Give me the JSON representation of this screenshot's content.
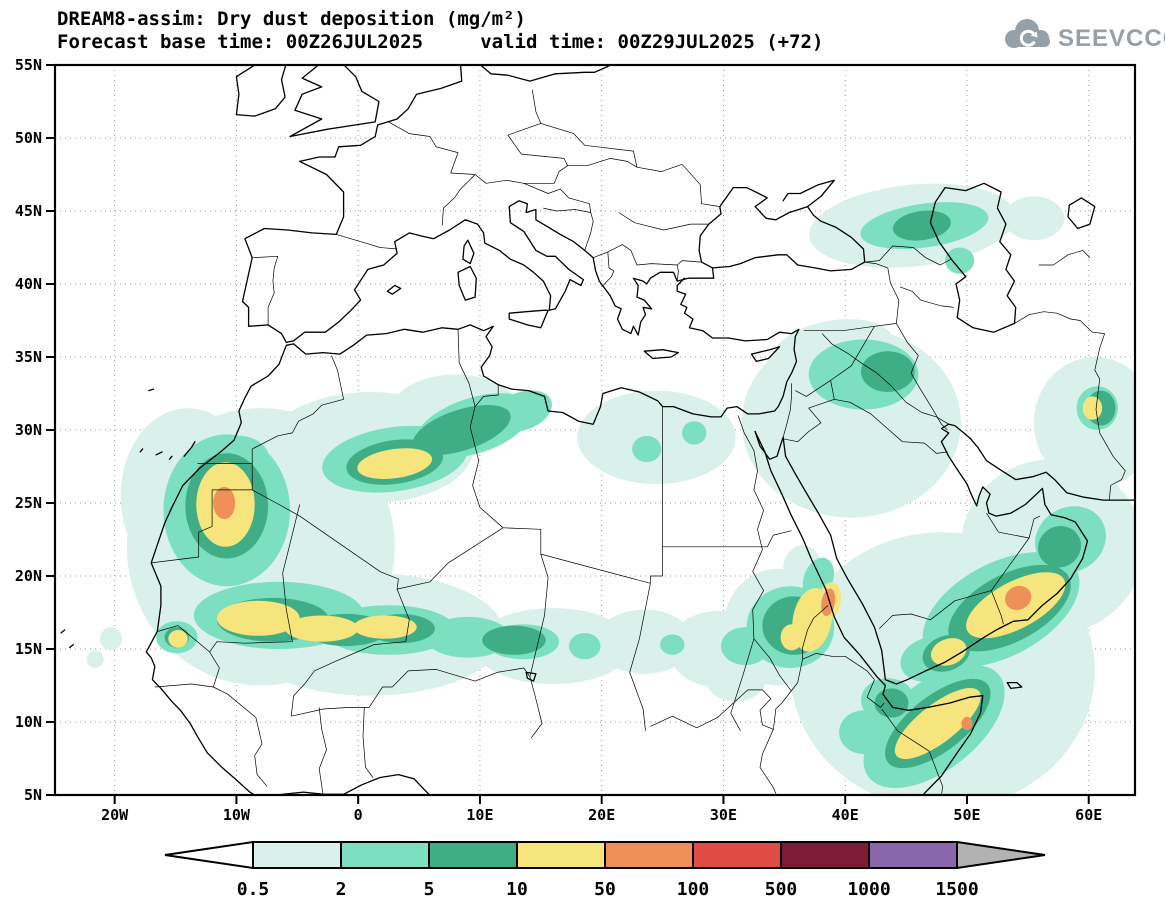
{
  "header": {
    "title": "DREAM8-assim: Dry dust deposition (mg/m²)",
    "subtitle": "Forecast base time: 00Z26JUL2025     valid time: 00Z29JUL2025 (+72)"
  },
  "logo": {
    "text": "SEEVCCC"
  },
  "map": {
    "lat_ticks": [
      "55N",
      "50N",
      "45N",
      "40N",
      "35N",
      "30N",
      "25N",
      "20N",
      "15N",
      "10N",
      "5N"
    ],
    "lon_ticks": [
      "20W",
      "10W",
      "0",
      "10E",
      "20E",
      "30E",
      "40E",
      "50E",
      "60E"
    ]
  },
  "chart_data": {
    "type": "heatmap",
    "title": "DREAM8-assim: Dry dust deposition (mg/m²)",
    "model": "DREAM8-assim",
    "variable": "Dry dust deposition",
    "units": "mg/m²",
    "forecast_base_time": "00Z26JUL2025",
    "valid_time": "00Z29JUL2025 (+72)",
    "lead_hours": 72,
    "extent": {
      "lon_min": -24.9,
      "lon_max": 63.8,
      "lat_min": 5,
      "lat_max": 55
    },
    "grid": "dotted, 5 deg lat / 10 deg lon",
    "legend_position": "bottom",
    "colorbar": {
      "levels": [
        0.5,
        2,
        5,
        10,
        50,
        100,
        500,
        1000,
        1500
      ],
      "labels": [
        "0.5",
        "2",
        "5",
        "10",
        "50",
        "100",
        "500",
        "1000",
        "1500"
      ],
      "colors": [
        "#ffffff",
        "#d9f1ea",
        "#7cdfbf",
        "#3fae86",
        "#f6e47c",
        "#ee9058",
        "#e04b43",
        "#7e1c38",
        "#8a67aa",
        "#b2b2b2"
      ]
    },
    "feature_columns": [
      "level_mg_m2",
      "lon_deg",
      "lat_deg",
      "rx_deg",
      "ry_deg",
      "rotation_deg"
    ],
    "deposition_features": [
      [
        0.5,
        -8,
        22,
        11,
        9.5,
        0
      ],
      [
        0.5,
        -14,
        25.5,
        5.5,
        6,
        0
      ],
      [
        0.5,
        1,
        28.8,
        8.5,
        3.8,
        0
      ],
      [
        0.5,
        8,
        31,
        5.5,
        2.8,
        0
      ],
      [
        0.5,
        1,
        16,
        11,
        4.2,
        0
      ],
      [
        0.5,
        16,
        15.2,
        6.5,
        2.6,
        0
      ],
      [
        0.5,
        23.5,
        15.5,
        4,
        2.2,
        0
      ],
      [
        0.5,
        29.5,
        15,
        4,
        2.6,
        0
      ],
      [
        0.5,
        34.5,
        16.5,
        4.5,
        4,
        0
      ],
      [
        0.5,
        24.5,
        29.5,
        6.5,
        3.2,
        0
      ],
      [
        0.5,
        40.5,
        30.5,
        9,
        6.5,
        0
      ],
      [
        0.5,
        39,
        35.5,
        5,
        2,
        -10
      ],
      [
        0.5,
        45.5,
        44,
        8.5,
        2.8,
        -6
      ],
      [
        0.5,
        48,
        13.5,
        12.5,
        9.5,
        0
      ],
      [
        0.5,
        57,
        22,
        7.5,
        6,
        0
      ],
      [
        0.5,
        60.5,
        30.5,
        5,
        4.5,
        0
      ],
      [
        0.5,
        -20.3,
        15.7,
        0.9,
        0.8,
        0
      ],
      [
        0.5,
        -21.6,
        14.3,
        0.7,
        0.6,
        0
      ],
      [
        0.5,
        31,
        13,
        2.5,
        1.6,
        0
      ],
      [
        0.5,
        55.5,
        44.5,
        2.5,
        1.5,
        0
      ],
      [
        0.5,
        36.5,
        20.5,
        1.6,
        1.6,
        0
      ],
      [
        2,
        -10.8,
        24.5,
        5.2,
        5.2,
        0
      ],
      [
        2,
        -9.8,
        28,
        2.5,
        1.6,
        0
      ],
      [
        2,
        -6.5,
        17.3,
        7,
        2.3,
        0
      ],
      [
        2,
        2.5,
        16.3,
        5.5,
        1.7,
        0
      ],
      [
        2,
        9,
        15.8,
        3.5,
        1.4,
        0
      ],
      [
        2,
        13.5,
        15.5,
        3,
        1.2,
        0
      ],
      [
        2,
        3,
        28,
        6,
        2.2,
        -8
      ],
      [
        2,
        9.5,
        30.3,
        5,
        1.9,
        -18
      ],
      [
        2,
        13.5,
        31.3,
        2.5,
        1.3,
        -20
      ],
      [
        2,
        -14.9,
        15.8,
        1.7,
        1.1,
        0
      ],
      [
        2,
        35.5,
        16.5,
        3.6,
        2.8,
        0
      ],
      [
        2,
        31.8,
        15.2,
        2,
        1.3,
        0
      ],
      [
        2,
        37.8,
        19.8,
        1.2,
        1.5,
        20
      ],
      [
        2,
        47.3,
        9.7,
        6.8,
        3,
        -38
      ],
      [
        2,
        43.5,
        11.5,
        2.2,
        1.5,
        0
      ],
      [
        2,
        41.5,
        9.3,
        2,
        1.5,
        0
      ],
      [
        2,
        52.8,
        17.7,
        7,
        3.2,
        -28
      ],
      [
        2,
        47,
        14.3,
        2.5,
        1.5,
        -15
      ],
      [
        2,
        58.5,
        22.5,
        3,
        2.2,
        -30
      ],
      [
        2,
        41.5,
        33.8,
        4.5,
        2.4,
        0
      ],
      [
        2,
        46.5,
        44,
        5.3,
        1.5,
        -8
      ],
      [
        2,
        23.7,
        28.7,
        1.2,
        0.9,
        0
      ],
      [
        2,
        27.6,
        29.8,
        1,
        0.8,
        0
      ],
      [
        2,
        60.7,
        31.5,
        1.7,
        1.5,
        0
      ],
      [
        2,
        25.8,
        15.3,
        1,
        0.7,
        0
      ],
      [
        2,
        18.6,
        15.2,
        1.3,
        0.9,
        0
      ],
      [
        2,
        49.4,
        41.6,
        1.2,
        0.9,
        0
      ],
      [
        5,
        -10.8,
        24.8,
        3.4,
        3.6,
        0
      ],
      [
        5,
        -7,
        17,
        4.6,
        1.5,
        0
      ],
      [
        5,
        -1,
        16.3,
        3.4,
        1.1,
        0
      ],
      [
        5,
        3.5,
        16.4,
        2.8,
        1,
        0
      ],
      [
        5,
        3,
        27.8,
        4,
        1.5,
        -8
      ],
      [
        5,
        8.5,
        30,
        4.2,
        1.4,
        -18
      ],
      [
        5,
        12.8,
        15.6,
        2.6,
        1,
        0
      ],
      [
        5,
        35.8,
        16.6,
        2.6,
        2,
        0
      ],
      [
        5,
        47.6,
        9.9,
        5.2,
        1.9,
        -38
      ],
      [
        5,
        43.8,
        11.3,
        1.4,
        1,
        0
      ],
      [
        5,
        53.5,
        17.8,
        5.5,
        2.3,
        -28
      ],
      [
        5,
        48.3,
        14.7,
        2,
        1.2,
        -20
      ],
      [
        5,
        43.5,
        34,
        2.2,
        1.4,
        0
      ],
      [
        5,
        46.3,
        44,
        2.4,
        1,
        -8
      ],
      [
        5,
        -14.9,
        15.8,
        1,
        0.7,
        0
      ],
      [
        5,
        57.6,
        22,
        1.8,
        1.4,
        -30
      ],
      [
        5,
        61,
        31.5,
        1.2,
        1.2,
        0
      ],
      [
        10,
        -10.9,
        24.9,
        2.4,
        2.9,
        0
      ],
      [
        10,
        -8.2,
        17.1,
        3.4,
        1.2,
        0
      ],
      [
        10,
        -3,
        16.4,
        3,
        0.9,
        0
      ],
      [
        10,
        2.2,
        16.5,
        2.6,
        0.8,
        0
      ],
      [
        10,
        -14.8,
        15.7,
        0.8,
        0.6,
        0
      ],
      [
        10,
        3,
        27.7,
        3.1,
        1,
        -8
      ],
      [
        10,
        37.3,
        17,
        1.6,
        2.2,
        10
      ],
      [
        10,
        35.6,
        15.8,
        0.9,
        0.9,
        0
      ],
      [
        10,
        47.6,
        9.9,
        4.3,
        1.3,
        -38
      ],
      [
        10,
        54,
        18,
        4.5,
        1.6,
        -28
      ],
      [
        10,
        48.5,
        14.8,
        1.5,
        0.9,
        -20
      ],
      [
        10,
        60.3,
        31.5,
        0.8,
        0.8,
        0
      ],
      [
        10,
        38.6,
        18.2,
        1,
        1.4,
        15
      ],
      [
        50,
        -11,
        25,
        0.9,
        1.1,
        0
      ],
      [
        50,
        38.6,
        18.2,
        0.55,
        0.95,
        10
      ],
      [
        50,
        54.2,
        18.5,
        1.1,
        0.8,
        -25
      ],
      [
        50,
        50,
        9.9,
        0.45,
        0.45,
        0
      ]
    ]
  }
}
